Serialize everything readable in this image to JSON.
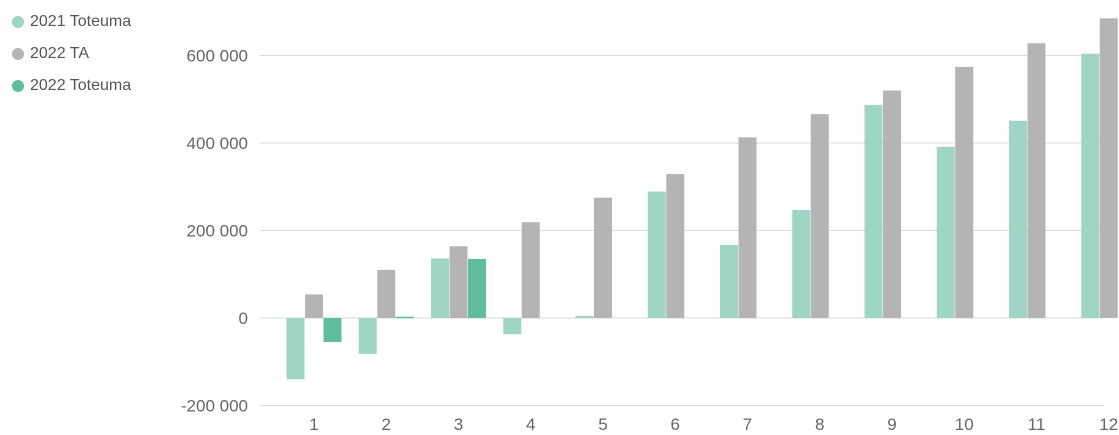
{
  "chart_data": {
    "type": "bar",
    "categories": [
      "1",
      "2",
      "3",
      "4",
      "5",
      "6",
      "7",
      "8",
      "9",
      "10",
      "11",
      "12"
    ],
    "series": [
      {
        "name": "2021 Toteuma",
        "color": "#9fd5c4",
        "values": [
          -140000,
          -82000,
          136000,
          -37000,
          5000,
          289000,
          167000,
          247000,
          487000,
          391000,
          451000,
          604000
        ]
      },
      {
        "name": "2022 TA",
        "color": "#b4b4b4",
        "values": [
          54000,
          110000,
          164000,
          219000,
          275000,
          329000,
          413000,
          466000,
          520000,
          574000,
          628000,
          685000
        ]
      },
      {
        "name": "2022 Toteuma",
        "color": "#5fbc9c",
        "values": [
          -55000,
          3000,
          135000,
          null,
          null,
          null,
          null,
          null,
          null,
          null,
          null,
          null
        ]
      }
    ],
    "y_ticks": [
      {
        "value": 600000,
        "label": "600 000"
      },
      {
        "value": 400000,
        "label": "400 000"
      },
      {
        "value": 200000,
        "label": "200 000"
      },
      {
        "value": 0,
        "label": "0"
      },
      {
        "value": -200000,
        "label": "-200 000"
      }
    ],
    "ylim": [
      -200000,
      700000
    ],
    "grid": true,
    "legend_position": "top-left",
    "title": "",
    "xlabel": "",
    "ylabel": ""
  }
}
